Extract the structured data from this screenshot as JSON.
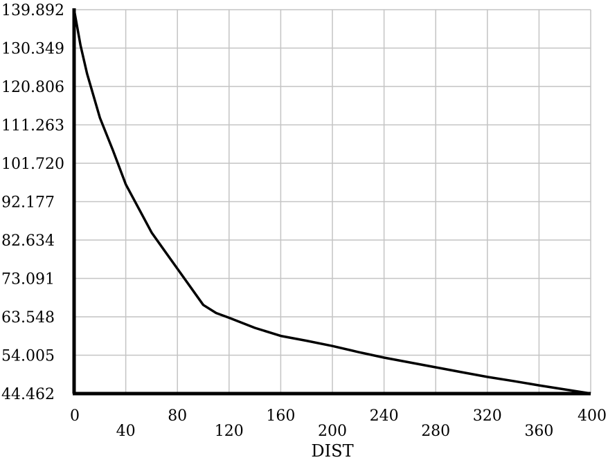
{
  "chart_data": {
    "type": "line",
    "title": "",
    "xlabel": "DIST",
    "ylabel": "",
    "xlim": [
      0,
      400
    ],
    "ylim": [
      44.462,
      139.892
    ],
    "grid": true,
    "x_ticks": [
      "0",
      "40",
      "80",
      "120",
      "160",
      "200",
      "240",
      "280",
      "320",
      "360",
      "400"
    ],
    "y_ticks": [
      "44.462",
      "54.005",
      "63.548",
      "73.091",
      "82.634",
      "92.177",
      "101.720",
      "111.263",
      "120.806",
      "130.349",
      "139.892"
    ],
    "series": [
      {
        "x": [
          0,
          5,
          10,
          20,
          30,
          40,
          50,
          60,
          70,
          80,
          90,
          100,
          110,
          120,
          140,
          160,
          180,
          200,
          220,
          240,
          260,
          280,
          300,
          320,
          340,
          360,
          380,
          400
        ],
        "y": [
          139.9,
          131.0,
          124.0,
          113.0,
          105.0,
          96.5,
          90.5,
          84.5,
          80.0,
          75.5,
          71.0,
          66.5,
          64.5,
          63.3,
          60.8,
          58.8,
          57.6,
          56.3,
          54.8,
          53.4,
          52.2,
          51.0,
          49.8,
          48.6,
          47.6,
          46.5,
          45.5,
          44.5
        ]
      }
    ]
  }
}
